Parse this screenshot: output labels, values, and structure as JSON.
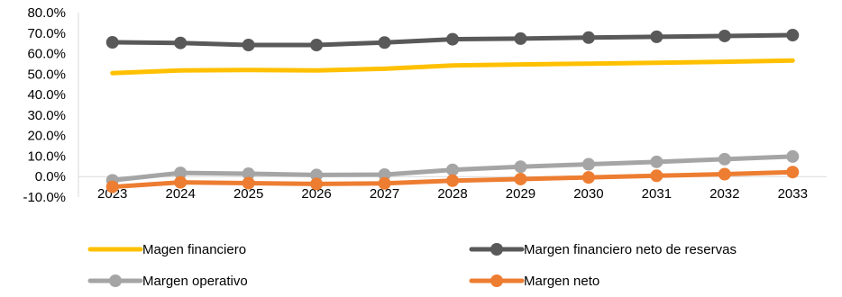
{
  "chart_data": {
    "type": "line",
    "title": "",
    "xlabel": "",
    "ylabel": "",
    "categories": [
      "2023",
      "2024",
      "2025",
      "2026",
      "2027",
      "2028",
      "2029",
      "2030",
      "2031",
      "2032",
      "2033"
    ],
    "ylim": [
      -10,
      80
    ],
    "yticks": [
      "80.0%",
      "70.0%",
      "60.0%",
      "50.0%",
      "40.0%",
      "30.0%",
      "20.0%",
      "10.0%",
      "0.0%",
      "-10.0%"
    ],
    "grid": false,
    "legend_position": "bottom",
    "series": [
      {
        "name": "Magen financiero",
        "color": "#FFC000",
        "markers": false,
        "values": [
          50.5,
          51.8,
          52.0,
          51.8,
          52.6,
          54.2,
          54.7,
          55.1,
          55.5,
          56.0,
          56.6
        ]
      },
      {
        "name": "Margen financiero neto de reservas",
        "color": "#595959",
        "markers": true,
        "values": [
          65.5,
          65.2,
          64.2,
          64.2,
          65.4,
          67.0,
          67.3,
          67.8,
          68.2,
          68.6,
          69.0
        ]
      },
      {
        "name": "Margen operativo",
        "color": "#A5A5A5",
        "markers": true,
        "values": [
          -1.8,
          1.8,
          1.4,
          0.8,
          1.0,
          3.3,
          4.8,
          6.0,
          7.2,
          8.5,
          9.8
        ]
      },
      {
        "name": "Margen neto",
        "color": "#ED7D31",
        "markers": true,
        "values": [
          -5.0,
          -2.8,
          -3.2,
          -3.6,
          -3.3,
          -2.0,
          -1.2,
          -0.4,
          0.4,
          1.2,
          2.2
        ]
      }
    ]
  }
}
